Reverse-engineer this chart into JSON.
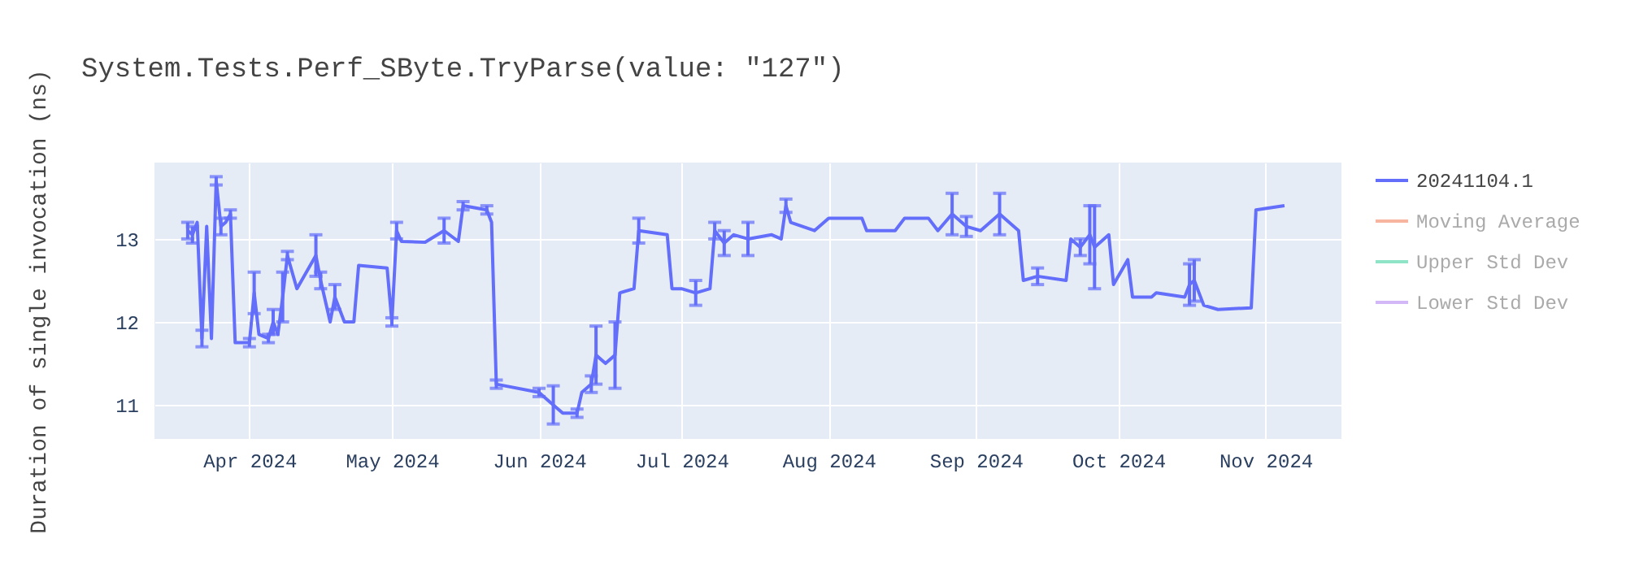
{
  "chart_data": {
    "type": "line",
    "title": "System.Tests.Perf_SByte.TryParse(value: \"127\")",
    "ylabel": "Duration of single invocation (ns)",
    "x": [
      "2024-03-19",
      "2024-03-20",
      "2024-03-21",
      "2024-03-22",
      "2024-03-23",
      "2024-03-24",
      "2024-03-25",
      "2024-03-26",
      "2024-03-27",
      "2024-03-28",
      "2024-03-29",
      "2024-04-01",
      "2024-04-02",
      "2024-04-03",
      "2024-04-05",
      "2024-04-06",
      "2024-04-07",
      "2024-04-08",
      "2024-04-09",
      "2024-04-11",
      "2024-04-15",
      "2024-04-16",
      "2024-04-18",
      "2024-04-19",
      "2024-04-21",
      "2024-04-23",
      "2024-04-24",
      "2024-04-30",
      "2024-05-01",
      "2024-05-02",
      "2024-05-03",
      "2024-05-08",
      "2024-05-12",
      "2024-05-15",
      "2024-05-16",
      "2024-05-21",
      "2024-05-22",
      "2024-05-23",
      "2024-06-01",
      "2024-06-02",
      "2024-06-04",
      "2024-06-06",
      "2024-06-09",
      "2024-06-10",
      "2024-06-12",
      "2024-06-13",
      "2024-06-15",
      "2024-06-17",
      "2024-06-18",
      "2024-06-21",
      "2024-06-22",
      "2024-06-28",
      "2024-06-29",
      "2024-07-01",
      "2024-07-04",
      "2024-07-07",
      "2024-07-08",
      "2024-07-10",
      "2024-07-12",
      "2024-07-15",
      "2024-07-20",
      "2024-07-22",
      "2024-07-23",
      "2024-07-24",
      "2024-07-29",
      "2024-08-01",
      "2024-08-08",
      "2024-08-09",
      "2024-08-15",
      "2024-08-17",
      "2024-08-22",
      "2024-08-24",
      "2024-08-27",
      "2024-08-30",
      "2024-09-02",
      "2024-09-06",
      "2024-09-10",
      "2024-09-11",
      "2024-09-14",
      "2024-09-20",
      "2024-09-21",
      "2024-09-23",
      "2024-09-25",
      "2024-09-26",
      "2024-09-29",
      "2024-09-30",
      "2024-10-03",
      "2024-10-04",
      "2024-10-08",
      "2024-10-09",
      "2024-10-15",
      "2024-10-16",
      "2024-10-17",
      "2024-10-19",
      "2024-10-22",
      "2024-10-29",
      "2024-10-30",
      "2024-11-05"
    ],
    "series": [
      {
        "name": "20241104.1",
        "color": "#636efa",
        "values": [
          13.1,
          13.05,
          13.2,
          11.8,
          13.15,
          11.8,
          13.7,
          13.15,
          13.2,
          13.3,
          11.75,
          11.75,
          12.35,
          11.85,
          11.8,
          12.0,
          11.85,
          12.3,
          12.8,
          12.4,
          12.8,
          12.5,
          12.0,
          12.3,
          12.0,
          12.0,
          12.68,
          12.65,
          12.0,
          13.1,
          12.97,
          12.96,
          13.1,
          12.97,
          13.4,
          13.35,
          13.2,
          11.25,
          11.15,
          11.1,
          11.0,
          10.9,
          10.9,
          11.15,
          11.25,
          11.6,
          11.5,
          11.6,
          12.35,
          12.4,
          13.1,
          13.05,
          12.4,
          12.4,
          12.35,
          12.4,
          13.1,
          12.95,
          13.05,
          13.0,
          13.05,
          13.0,
          13.4,
          13.2,
          13.1,
          13.25,
          13.25,
          13.1,
          13.1,
          13.25,
          13.25,
          13.1,
          13.3,
          13.15,
          13.1,
          13.3,
          13.1,
          12.5,
          12.55,
          12.5,
          13.0,
          12.9,
          13.05,
          12.9,
          13.05,
          12.45,
          12.75,
          12.3,
          12.3,
          12.35,
          12.3,
          12.45,
          12.5,
          12.2,
          12.15,
          12.17,
          13.35,
          13.4
        ],
        "errors": [
          0.1,
          0.1,
          null,
          0.1,
          null,
          null,
          0.05,
          0.1,
          null,
          0.05,
          null,
          0.05,
          0.25,
          null,
          0.05,
          0.15,
          null,
          0.3,
          0.05,
          null,
          0.25,
          0.1,
          null,
          0.15,
          null,
          null,
          null,
          null,
          0.05,
          0.1,
          null,
          null,
          0.15,
          null,
          0.05,
          0.05,
          null,
          0.05,
          0.05,
          null,
          0.23,
          null,
          0.05,
          null,
          0.1,
          0.35,
          null,
          0.4,
          null,
          null,
          0.15,
          null,
          null,
          null,
          0.15,
          null,
          0.1,
          0.15,
          null,
          0.2,
          null,
          null,
          0.08,
          null,
          null,
          null,
          null,
          null,
          null,
          null,
          null,
          null,
          0.25,
          0.12,
          null,
          0.25,
          null,
          null,
          0.1,
          null,
          null,
          0.1,
          0.35,
          0.5,
          null,
          null,
          null,
          null,
          null,
          null,
          null,
          0.25,
          0.25,
          null,
          null,
          null,
          null,
          null
        ]
      },
      {
        "name": "Moving Average",
        "color": "#f7b49e",
        "values": [
          null,
          null,
          null,
          null,
          null,
          null,
          null,
          null,
          null,
          null,
          null,
          null,
          null,
          null,
          null,
          null,
          null,
          null,
          null,
          null,
          null,
          null,
          null,
          null,
          null,
          null,
          null,
          null,
          null,
          null,
          null,
          null,
          null,
          null,
          null,
          null,
          null,
          null,
          null,
          null,
          null,
          null,
          null,
          null,
          null,
          null,
          null,
          null,
          null,
          null,
          null,
          null,
          null,
          null,
          null,
          null,
          null,
          null,
          null,
          null,
          null,
          null,
          null,
          null,
          null,
          null,
          null,
          null,
          null,
          null,
          null,
          null,
          null,
          null,
          null,
          null,
          null,
          null,
          null,
          null,
          null,
          null,
          null,
          null,
          null,
          null,
          null,
          null,
          null,
          null,
          null,
          null,
          null,
          null,
          null,
          null,
          null,
          null
        ]
      },
      {
        "name": "Upper Std Dev",
        "color": "#8fe3c6",
        "values": [
          null,
          null,
          null,
          null,
          null,
          null,
          null,
          null,
          null,
          null,
          null,
          null,
          null,
          null,
          null,
          null,
          null,
          null,
          null,
          null,
          null,
          null,
          null,
          null,
          null,
          null,
          null,
          null,
          null,
          null,
          null,
          null,
          null,
          null,
          null,
          null,
          null,
          null,
          null,
          null,
          null,
          null,
          null,
          null,
          null,
          null,
          null,
          null,
          null,
          null,
          null,
          null,
          null,
          null,
          null,
          null,
          null,
          null,
          null,
          null,
          null,
          null,
          null,
          null,
          null,
          null,
          null,
          null,
          null,
          null,
          null,
          null,
          null,
          null,
          null,
          null,
          null,
          null,
          null,
          null,
          null,
          null,
          null,
          null,
          null,
          null,
          null,
          null,
          null,
          null,
          null,
          null,
          null,
          null,
          null,
          null,
          null,
          null
        ]
      },
      {
        "name": "Lower Std Dev",
        "color": "#d3b8f7",
        "values": [
          null,
          null,
          null,
          null,
          null,
          null,
          null,
          null,
          null,
          null,
          null,
          null,
          null,
          null,
          null,
          null,
          null,
          null,
          null,
          null,
          null,
          null,
          null,
          null,
          null,
          null,
          null,
          null,
          null,
          null,
          null,
          null,
          null,
          null,
          null,
          null,
          null,
          null,
          null,
          null,
          null,
          null,
          null,
          null,
          null,
          null,
          null,
          null,
          null,
          null,
          null,
          null,
          null,
          null,
          null,
          null,
          null,
          null,
          null,
          null,
          null,
          null,
          null,
          null,
          null,
          null,
          null,
          null,
          null,
          null,
          null,
          null,
          null,
          null,
          null,
          null,
          null,
          null,
          null,
          null,
          null,
          null,
          null,
          null,
          null,
          null,
          null,
          null,
          null,
          null,
          null,
          null,
          null,
          null,
          null,
          null,
          null,
          null
        ]
      }
    ],
    "xlim": [
      "2024-03-12",
      "2024-11-17"
    ],
    "xticks": [
      {
        "value": "2024-04-01",
        "label": "Apr 2024"
      },
      {
        "value": "2024-05-01",
        "label": "May 2024"
      },
      {
        "value": "2024-06-01",
        "label": "Jun 2024"
      },
      {
        "value": "2024-07-01",
        "label": "Jul 2024"
      },
      {
        "value": "2024-08-01",
        "label": "Aug 2024"
      },
      {
        "value": "2024-09-01",
        "label": "Sep 2024"
      },
      {
        "value": "2024-10-01",
        "label": "Oct 2024"
      },
      {
        "value": "2024-11-01",
        "label": "Nov 2024"
      }
    ],
    "ylim": [
      10.59,
      13.92
    ],
    "yticks": [
      11,
      12,
      13
    ],
    "grid": true,
    "legend": "top right"
  }
}
